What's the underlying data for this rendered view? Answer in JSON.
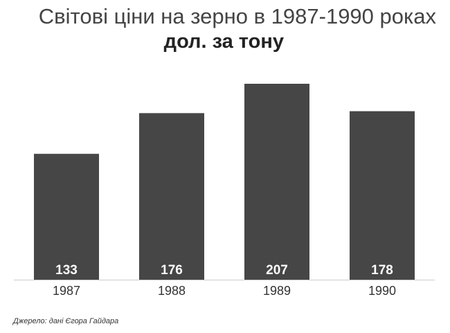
{
  "chart_data": {
    "type": "bar",
    "title": "Світові ціни на зерно в 1987-1990 роках",
    "subtitle": "дол. за тону",
    "categories": [
      "1987",
      "1988",
      "1989",
      "1990"
    ],
    "values": [
      133,
      176,
      207,
      178
    ],
    "ylim": [
      0,
      207
    ],
    "grid": false,
    "colors": {
      "bar": "#464646",
      "value_label": "#ffffff",
      "baseline": "#cccccc"
    }
  },
  "source": "Джерело: дані Єгора Гайдара"
}
